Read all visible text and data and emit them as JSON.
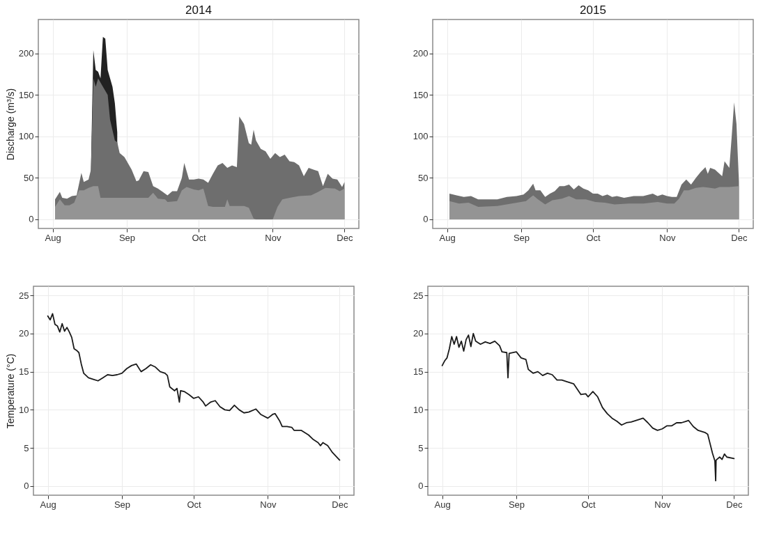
{
  "chart_data": [
    {
      "type": "area",
      "title": "2014",
      "ylabel": "Discharge (m³/s)",
      "xlim": [
        "2014-07-26",
        "2014-12-07"
      ],
      "xticks": [
        {
          "value": "2014-08-01",
          "label": "Aug"
        },
        {
          "value": "2014-09-01",
          "label": "Sep"
        },
        {
          "value": "2014-10-01",
          "label": "Oct"
        },
        {
          "value": "2014-11-01",
          "label": "Nov"
        },
        {
          "value": "2014-12-01",
          "label": "Dec"
        }
      ],
      "ylim": [
        -11,
        241
      ],
      "yticks": [
        0,
        50,
        100,
        150,
        200
      ],
      "grid": true,
      "series": [
        {
          "color": "#222222",
          "x": [
            "2014-08-17",
            "2014-08-18",
            "2014-08-19",
            "2014-08-20",
            "2014-08-21",
            "2014-08-22",
            "2014-08-23",
            "2014-08-24",
            "2014-08-25",
            "2014-08-26",
            "2014-08-27",
            "2014-08-28"
          ],
          "values": [
            60,
            204,
            180,
            178,
            170,
            220,
            218,
            180,
            170,
            160,
            140,
            105
          ]
        },
        {
          "color": "#6e6e6e",
          "x": [
            "2014-08-02",
            "2014-08-04",
            "2014-08-05",
            "2014-08-07",
            "2014-08-09",
            "2014-08-11",
            "2014-08-13",
            "2014-08-14",
            "2014-08-16",
            "2014-08-17",
            "2014-08-18",
            "2014-08-19",
            "2014-08-20",
            "2014-08-21",
            "2014-08-22",
            "2014-08-24",
            "2014-08-25",
            "2014-08-27",
            "2014-08-28",
            "2014-08-29",
            "2014-08-31",
            "2014-09-02",
            "2014-09-03",
            "2014-09-05",
            "2014-09-06",
            "2014-09-08",
            "2014-09-10",
            "2014-09-12",
            "2014-09-14",
            "2014-09-16",
            "2014-09-18",
            "2014-09-20",
            "2014-09-22",
            "2014-09-24",
            "2014-09-25",
            "2014-09-27",
            "2014-09-29",
            "2014-10-01",
            "2014-10-03",
            "2014-10-05",
            "2014-10-07",
            "2014-10-09",
            "2014-10-11",
            "2014-10-13",
            "2014-10-15",
            "2014-10-17",
            "2014-10-18",
            "2014-10-20",
            "2014-10-22",
            "2014-10-23",
            "2014-10-24",
            "2014-10-25",
            "2014-10-27",
            "2014-10-29",
            "2014-10-31",
            "2014-11-02",
            "2014-11-04",
            "2014-11-06",
            "2014-11-08",
            "2014-11-10",
            "2014-11-12",
            "2014-11-14",
            "2014-11-16",
            "2014-11-18",
            "2014-11-20",
            "2014-11-22",
            "2014-11-24",
            "2014-11-26",
            "2014-11-28",
            "2014-11-30",
            "2014-12-01"
          ],
          "values": [
            24,
            33,
            26,
            25,
            28,
            29,
            56,
            45,
            48,
            60,
            170,
            160,
            170,
            165,
            160,
            150,
            120,
            95,
            93,
            80,
            75,
            65,
            60,
            46,
            47,
            58,
            57,
            40,
            37,
            33,
            29,
            34,
            34,
            50,
            68,
            48,
            48,
            49,
            48,
            44,
            55,
            65,
            68,
            62,
            65,
            63,
            124,
            115,
            92,
            90,
            108,
            95,
            85,
            82,
            73,
            80,
            75,
            78,
            70,
            69,
            65,
            52,
            62,
            60,
            58,
            40,
            55,
            49,
            48,
            39,
            45
          ]
        },
        {
          "color": "#949494",
          "x": [
            "2014-08-02",
            "2014-08-04",
            "2014-08-06",
            "2014-08-08",
            "2014-08-10",
            "2014-08-12",
            "2014-08-14",
            "2014-08-16",
            "2014-08-18",
            "2014-08-20",
            "2014-08-21",
            "2014-09-10",
            "2014-09-12",
            "2014-09-14",
            "2014-09-17",
            "2014-09-18",
            "2014-09-22",
            "2014-09-24",
            "2014-09-26",
            "2014-09-29",
            "2014-10-01",
            "2014-10-03",
            "2014-10-05",
            "2014-10-07",
            "2014-10-12",
            "2014-10-13",
            "2014-10-14",
            "2014-10-20",
            "2014-10-22",
            "2014-10-24",
            "2014-10-25",
            "2014-11-01",
            "2014-11-03",
            "2014-11-05",
            "2014-11-08",
            "2014-11-12",
            "2014-11-17",
            "2014-11-20",
            "2014-11-23",
            "2014-11-27",
            "2014-11-29",
            "2014-12-01"
          ],
          "values": [
            15,
            24,
            17,
            17,
            20,
            35,
            35,
            38,
            40,
            40,
            26,
            26,
            32,
            25,
            24,
            21,
            22,
            35,
            39,
            36,
            35,
            37,
            16,
            15,
            15,
            24,
            16,
            16,
            14,
            1,
            0,
            0,
            15,
            24,
            26,
            28,
            29,
            33,
            38,
            37,
            34,
            37
          ]
        }
      ]
    },
    {
      "type": "area",
      "title": "2015",
      "xlim": [
        "2015-07-26",
        "2015-12-07"
      ],
      "xticks": [
        {
          "value": "2015-08-01",
          "label": "Aug"
        },
        {
          "value": "2015-09-01",
          "label": "Sep"
        },
        {
          "value": "2015-10-01",
          "label": "Oct"
        },
        {
          "value": "2015-11-01",
          "label": "Nov"
        },
        {
          "value": "2015-12-01",
          "label": "Dec"
        }
      ],
      "ylim": [
        -11,
        241
      ],
      "yticks": [
        0,
        50,
        100,
        150,
        200
      ],
      "grid": true,
      "series": [
        {
          "color": "#6e6e6e",
          "x": [
            "2015-08-02",
            "2015-08-05",
            "2015-08-08",
            "2015-08-11",
            "2015-08-14",
            "2015-08-18",
            "2015-08-22",
            "2015-08-26",
            "2015-08-30",
            "2015-09-02",
            "2015-09-04",
            "2015-09-06",
            "2015-09-07",
            "2015-09-09",
            "2015-09-11",
            "2015-09-13",
            "2015-09-15",
            "2015-09-17",
            "2015-09-19",
            "2015-09-21",
            "2015-09-23",
            "2015-09-25",
            "2015-09-27",
            "2015-09-29",
            "2015-10-01",
            "2015-10-03",
            "2015-10-05",
            "2015-10-07",
            "2015-10-09",
            "2015-10-11",
            "2015-10-14",
            "2015-10-18",
            "2015-10-22",
            "2015-10-26",
            "2015-10-28",
            "2015-10-30",
            "2015-11-01",
            "2015-11-03",
            "2015-11-05",
            "2015-11-07",
            "2015-11-09",
            "2015-11-11",
            "2015-11-13",
            "2015-11-15",
            "2015-11-17",
            "2015-11-18",
            "2015-11-19",
            "2015-11-21",
            "2015-11-24",
            "2015-11-25",
            "2015-11-27",
            "2015-11-28",
            "2015-11-29",
            "2015-11-30",
            "2015-12-01"
          ],
          "values": [
            31,
            29,
            27,
            28,
            24,
            24,
            24,
            27,
            28,
            30,
            35,
            43,
            35,
            35,
            27,
            31,
            34,
            40,
            40,
            42,
            36,
            41,
            37,
            35,
            31,
            31,
            28,
            30,
            27,
            28,
            26,
            28,
            28,
            31,
            28,
            30,
            28,
            27,
            27,
            42,
            48,
            42,
            50,
            57,
            63,
            55,
            62,
            60,
            52,
            70,
            62,
            100,
            141,
            115,
            45
          ]
        },
        {
          "color": "#949494",
          "x": [
            "2015-08-02",
            "2015-08-06",
            "2015-08-10",
            "2015-08-14",
            "2015-08-22",
            "2015-08-28",
            "2015-09-03",
            "2015-09-06",
            "2015-09-08",
            "2015-09-11",
            "2015-09-14",
            "2015-09-18",
            "2015-09-21",
            "2015-09-24",
            "2015-09-28",
            "2015-10-02",
            "2015-10-06",
            "2015-10-10",
            "2015-10-16",
            "2015-10-22",
            "2015-10-28",
            "2015-11-01",
            "2015-11-04",
            "2015-11-06",
            "2015-11-08",
            "2015-11-10",
            "2015-11-13",
            "2015-11-16",
            "2015-11-19",
            "2015-11-21",
            "2015-11-23",
            "2015-11-27",
            "2015-12-01"
          ],
          "values": [
            22,
            19,
            20,
            15,
            16,
            19,
            22,
            29,
            24,
            18,
            23,
            25,
            28,
            24,
            24,
            21,
            20,
            18,
            19,
            19,
            21,
            19,
            19,
            25,
            35,
            35,
            38,
            39,
            38,
            37,
            39,
            39,
            40
          ]
        }
      ]
    },
    {
      "type": "line",
      "ylabel": "Temperature (°C)",
      "xlim": [
        "2014-07-26",
        "2014-12-07"
      ],
      "xticks": [
        {
          "value": "2014-08-01",
          "label": "Aug"
        },
        {
          "value": "2014-09-01",
          "label": "Sep"
        },
        {
          "value": "2014-10-01",
          "label": "Oct"
        },
        {
          "value": "2014-11-01",
          "label": "Nov"
        },
        {
          "value": "2014-12-01",
          "label": "Dec"
        }
      ],
      "ylim": [
        -1.2,
        26.2
      ],
      "yticks": [
        0,
        5,
        10,
        15,
        20,
        25
      ],
      "grid": true,
      "series": [
        {
          "color": "#1a1a1a",
          "x": [
            "2014-08-01",
            "2014-08-02",
            "2014-08-03",
            "2014-08-04",
            "2014-08-05",
            "2014-08-06",
            "2014-08-07",
            "2014-08-08",
            "2014-08-09",
            "2014-08-10",
            "2014-08-11",
            "2014-08-12",
            "2014-08-13",
            "2014-08-14",
            "2014-08-15",
            "2014-08-16",
            "2014-08-18",
            "2014-08-20",
            "2014-08-22",
            "2014-08-24",
            "2014-08-26",
            "2014-08-28",
            "2014-08-30",
            "2014-09-01",
            "2014-09-03",
            "2014-09-05",
            "2014-09-07",
            "2014-09-09",
            "2014-09-11",
            "2014-09-13",
            "2014-09-15",
            "2014-09-17",
            "2014-09-19",
            "2014-09-20",
            "2014-09-21",
            "2014-09-23",
            "2014-09-24",
            "2014-09-25",
            "2014-09-25T12:00",
            "2014-09-27",
            "2014-09-29",
            "2014-10-01",
            "2014-10-03",
            "2014-10-05",
            "2014-10-06",
            "2014-10-08",
            "2014-10-10",
            "2014-10-12",
            "2014-10-14",
            "2014-10-16",
            "2014-10-18",
            "2014-10-20",
            "2014-10-22",
            "2014-10-24",
            "2014-10-27",
            "2014-10-29",
            "2014-11-01",
            "2014-11-03",
            "2014-11-04",
            "2014-11-06",
            "2014-11-07",
            "2014-11-09",
            "2014-11-11",
            "2014-11-12",
            "2014-11-15",
            "2014-11-18",
            "2014-11-20",
            "2014-11-22",
            "2014-11-23",
            "2014-11-24",
            "2014-11-26",
            "2014-11-28",
            "2014-12-01"
          ],
          "values": [
            22.3,
            21.8,
            22.6,
            21.2,
            21.0,
            20.2,
            21.3,
            20.3,
            20.8,
            20.2,
            19.5,
            18.0,
            17.8,
            17.5,
            16.0,
            14.8,
            14.2,
            14.0,
            13.8,
            14.2,
            14.6,
            14.5,
            14.6,
            14.8,
            15.4,
            15.8,
            16.0,
            15.0,
            15.4,
            15.9,
            15.6,
            15.0,
            14.8,
            14.5,
            13.0,
            12.5,
            12.8,
            11.0,
            12.5,
            12.4,
            12.0,
            11.5,
            11.7,
            11.0,
            10.5,
            11.0,
            11.2,
            10.4,
            10.0,
            9.9,
            10.6,
            10.0,
            9.6,
            9.7,
            10.1,
            9.4,
            8.9,
            9.4,
            9.5,
            8.5,
            7.8,
            7.8,
            7.7,
            7.3,
            7.3,
            6.7,
            6.1,
            5.7,
            5.3,
            5.7,
            5.3,
            4.4,
            3.4
          ]
        }
      ]
    },
    {
      "type": "line",
      "xlim": [
        "2015-07-26",
        "2015-12-07"
      ],
      "xticks": [
        {
          "value": "2015-08-01",
          "label": "Aug"
        },
        {
          "value": "2015-09-01",
          "label": "Sep"
        },
        {
          "value": "2015-10-01",
          "label": "Oct"
        },
        {
          "value": "2015-11-01",
          "label": "Nov"
        },
        {
          "value": "2015-12-01",
          "label": "Dec"
        }
      ],
      "ylim": [
        -1.2,
        26.2
      ],
      "yticks": [
        0,
        5,
        10,
        15,
        20,
        25
      ],
      "grid": true,
      "series": [
        {
          "color": "#1a1a1a",
          "x": [
            "2015-08-01",
            "2015-08-02",
            "2015-08-03",
            "2015-08-04",
            "2015-08-05",
            "2015-08-06",
            "2015-08-07",
            "2015-08-08",
            "2015-08-09",
            "2015-08-10",
            "2015-08-11",
            "2015-08-12",
            "2015-08-13",
            "2015-08-14",
            "2015-08-15",
            "2015-08-17",
            "2015-08-19",
            "2015-08-21",
            "2015-08-23",
            "2015-08-25",
            "2015-08-26",
            "2015-08-28",
            "2015-08-28T12:00",
            "2015-08-29",
            "2015-09-01",
            "2015-09-03",
            "2015-09-05",
            "2015-09-06",
            "2015-09-08",
            "2015-09-10",
            "2015-09-12",
            "2015-09-14",
            "2015-09-16",
            "2015-09-18",
            "2015-09-20",
            "2015-09-22",
            "2015-09-25",
            "2015-09-28",
            "2015-09-30",
            "2015-10-01",
            "2015-10-03",
            "2015-10-05",
            "2015-10-07",
            "2015-10-09",
            "2015-10-11",
            "2015-10-13",
            "2015-10-15",
            "2015-10-17",
            "2015-10-19",
            "2015-10-22",
            "2015-10-24",
            "2015-10-26",
            "2015-10-28",
            "2015-10-30",
            "2015-11-01",
            "2015-11-03",
            "2015-11-05",
            "2015-11-07",
            "2015-11-09",
            "2015-11-11",
            "2015-11-12",
            "2015-11-14",
            "2015-11-16",
            "2015-11-19",
            "2015-11-20",
            "2015-11-22",
            "2015-11-23",
            "2015-11-23T08:00",
            "2015-11-23T12:00",
            "2015-11-25",
            "2015-11-26",
            "2015-11-27",
            "2015-11-28",
            "2015-12-01"
          ],
          "values": [
            15.8,
            16.4,
            16.8,
            18.0,
            19.6,
            18.6,
            19.6,
            18.2,
            19.0,
            17.7,
            19.2,
            19.8,
            18.3,
            20.0,
            19.0,
            18.6,
            18.9,
            18.7,
            19.0,
            18.4,
            17.6,
            17.5,
            14.2,
            17.4,
            17.6,
            16.8,
            16.6,
            15.3,
            14.8,
            15.0,
            14.5,
            14.8,
            14.6,
            13.9,
            13.9,
            13.7,
            13.4,
            12.0,
            12.1,
            11.7,
            12.4,
            11.7,
            10.3,
            9.5,
            8.9,
            8.5,
            8.0,
            8.3,
            8.4,
            8.7,
            8.9,
            8.3,
            7.6,
            7.3,
            7.5,
            7.9,
            7.9,
            8.3,
            8.3,
            8.5,
            8.6,
            7.8,
            7.3,
            7.0,
            6.8,
            4.3,
            3.3,
            0.7,
            3.4,
            3.8,
            3.5,
            4.2,
            3.8,
            3.6
          ]
        }
      ]
    }
  ]
}
